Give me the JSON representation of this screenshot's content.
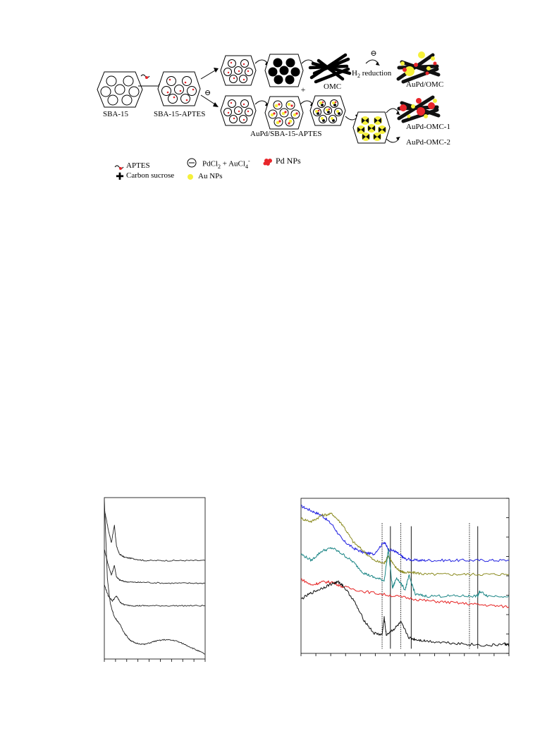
{
  "scheme": {
    "labels": {
      "sba15": "SBA-15",
      "sba15_aptes": "SBA-15-APTES",
      "omc": "OMC",
      "h2_reduction": "H",
      "h2_sub": "2",
      "h2_rest": " reduction",
      "aupd_omc": "AuPd/OMC",
      "aupd_sba": "AuPd/SBA-15-APTES",
      "aupd_omc1": "AuPd-OMC-1",
      "aupd_omc2": "AuPd-OMC-2",
      "minus": "⊖",
      "plus": "+"
    },
    "legend": {
      "aptes": "APTES",
      "carbon": "Carbon sucrose",
      "precursor_a": "PdCl",
      "precursor_a_sub": "2",
      "precursor_b": " + AuCl",
      "precursor_b_sub": "4",
      "precursor_b_sup": "-",
      "au": "Au NPs",
      "pd": "Pd NPs"
    },
    "colors": {
      "pd": "#e8262b",
      "au": "#f5f03a",
      "carbon": "#111111"
    }
  },
  "chart_data": [
    {
      "type": "line",
      "title": "",
      "xlabel": "",
      "ylabel": "",
      "grid": false,
      "xlim": [
        0,
        10
      ],
      "ylim": [
        0,
        10
      ],
      "series": [
        {
          "x": [
            0,
            0.4,
            0.7,
            1.0,
            1.2,
            1.5,
            2.0,
            3.0,
            4.0,
            6.0,
            8.0,
            10.0
          ],
          "values": [
            9.3,
            8.0,
            7.2,
            8.3,
            7.0,
            6.5,
            6.3,
            6.2,
            6.1,
            6.1,
            6.1,
            6.1
          ]
        },
        {
          "x": [
            0,
            0.4,
            0.7,
            1.0,
            1.2,
            1.5,
            2.0,
            3.0,
            4.0,
            6.0,
            8.0,
            10.0
          ],
          "values": [
            6.8,
            5.8,
            5.2,
            5.8,
            5.1,
            4.9,
            4.8,
            4.75,
            4.75,
            4.7,
            4.7,
            4.7
          ]
        },
        {
          "x": [
            0,
            0.4,
            0.8,
            1.2,
            1.6,
            2.0,
            3.0,
            4.0,
            6.0,
            8.0,
            10.0
          ],
          "values": [
            4.6,
            3.9,
            3.6,
            3.9,
            3.5,
            3.35,
            3.3,
            3.3,
            3.3,
            3.3,
            3.3
          ]
        },
        {
          "x": [
            0,
            0.3,
            0.6,
            1.0,
            1.5,
            2.0,
            2.5,
            3.0,
            4.0,
            5.0,
            6.0,
            7.0,
            8.0,
            9.0,
            10.0
          ],
          "values": [
            9.9,
            5.0,
            3.4,
            2.6,
            2.2,
            1.6,
            1.2,
            1.0,
            0.9,
            1.1,
            1.2,
            1.15,
            0.9,
            0.6,
            0.3
          ]
        }
      ]
    },
    {
      "type": "line",
      "title": "",
      "xlabel": "",
      "ylabel": "",
      "grid": false,
      "xlim": [
        0,
        10
      ],
      "ylim": [
        0,
        10
      ],
      "colors": [
        "#1f1fe0",
        "#8a8a1e",
        "#1a8585",
        "#e62020",
        "#111111"
      ],
      "series": [
        {
          "x": [
            0,
            0.5,
            1.0,
            1.5,
            2.0,
            2.5,
            3.0,
            3.5,
            4.0,
            4.2,
            4.5,
            4.8,
            5.0,
            5.5,
            6.0,
            7.0,
            8.0,
            9.0,
            10.0
          ],
          "values": [
            9.5,
            9.2,
            8.9,
            8.3,
            7.3,
            6.8,
            6.5,
            6.4,
            7.2,
            6.7,
            6.6,
            6.3,
            6.1,
            6.0,
            6.0,
            6.0,
            6.0,
            6.0,
            6.0
          ]
        },
        {
          "x": [
            0,
            0.5,
            1.0,
            1.5,
            2.0,
            2.5,
            3.0,
            3.5,
            4.0,
            4.2,
            4.5,
            4.8,
            5.0,
            5.5,
            6.0,
            7.0,
            8.0,
            9.0,
            10.0
          ],
          "values": [
            8.7,
            8.5,
            8.9,
            9.0,
            8.3,
            7.2,
            6.6,
            6.0,
            5.8,
            6.3,
            5.6,
            5.3,
            5.2,
            5.2,
            5.1,
            5.1,
            5.1,
            5.1,
            5.1
          ]
        },
        {
          "x": [
            0,
            0.5,
            1.0,
            1.5,
            2.0,
            2.5,
            3.0,
            3.5,
            4.0,
            4.2,
            4.4,
            4.6,
            5.0,
            5.2,
            5.5,
            6.0,
            7.0,
            8.0,
            8.5,
            8.6,
            9.0,
            10.0
          ],
          "values": [
            6.4,
            6.0,
            6.6,
            6.8,
            6.4,
            5.9,
            5.2,
            4.9,
            4.7,
            6.7,
            4.2,
            4.9,
            4.1,
            5.0,
            3.8,
            3.7,
            3.7,
            3.7,
            3.7,
            4.0,
            3.7,
            3.7
          ]
        },
        {
          "x": [
            0,
            0.5,
            1.0,
            1.5,
            2.0,
            3.0,
            4.0,
            5.0,
            6.0,
            7.0,
            8.0,
            9.0,
            10.0
          ],
          "values": [
            4.8,
            4.4,
            4.6,
            4.6,
            4.3,
            4.0,
            3.8,
            3.6,
            3.4,
            3.3,
            3.2,
            3.1,
            3.0
          ]
        },
        {
          "x": [
            0,
            0.5,
            1.0,
            1.5,
            1.8,
            2.0,
            2.5,
            3.0,
            3.5,
            3.9,
            4.0,
            4.1,
            4.5,
            4.8,
            5.2,
            5.5,
            6.0,
            7.0,
            8.0,
            9.0,
            9.8,
            10.0
          ],
          "values": [
            3.5,
            3.9,
            4.2,
            4.5,
            4.6,
            4.4,
            3.5,
            2.2,
            1.3,
            1.2,
            2.3,
            1.2,
            1.6,
            2.0,
            1.0,
            0.9,
            0.8,
            0.7,
            0.6,
            0.5,
            0.6,
            0.55
          ]
        }
      ],
      "reference_lines": {
        "dotted_x": [
          3.9,
          4.8,
          8.1
        ],
        "solid_x": [
          4.3,
          5.3,
          8.5
        ]
      }
    }
  ]
}
